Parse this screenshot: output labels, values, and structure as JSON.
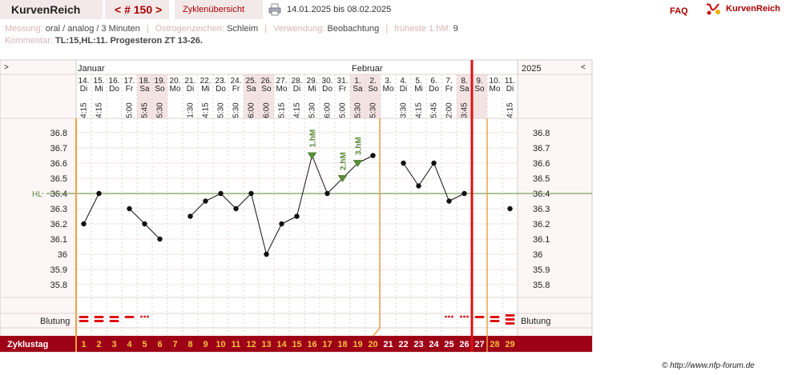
{
  "header": {
    "brand": "KurvenReich",
    "cycle_nav": "< # 150 >",
    "overview_label": "Zyklenübersicht",
    "print_icon": "printer-icon",
    "date_range": "14.01.2025 bis 08.02.2025",
    "faq": "FAQ",
    "logo_icon": "kurvenreich-logo-icon",
    "logo_text": "KurvenReich"
  },
  "meta": {
    "messung_key": "Messung:",
    "messung_val": "oral / analog / 3 Minuten",
    "oestrogen_key": "Östrogenzeichen:",
    "oestrogen_val": "Schleim",
    "verwendung_key": "Verwendung:",
    "verwendung_val": "Beobachtung",
    "fruehest_key": "früheste 1.hM:",
    "fruehest_val": "9",
    "kommentar_key": "Kommentar:",
    "kommentar_val": "TL:15,HL:11. Progesteron ZT 13-26."
  },
  "colors": {
    "accent": "#990011",
    "cycle_bar": "#9e0016",
    "orange": "#f0a040",
    "red_line": "#dd1111",
    "green": "#5a8a3a",
    "weekend_bg": "#f3e3e3",
    "panel_bg": "#fdf6f6",
    "grid": "#e0d2d2"
  },
  "chart_data": {
    "type": "line",
    "months": [
      {
        "label": "Januar",
        "start_index": 0
      },
      {
        "label": "Februar",
        "start_index": 18
      }
    ],
    "year": "2025",
    "nav_left": ">",
    "nav_right": "<",
    "x": [
      "14.",
      "15.",
      "16.",
      "17.",
      "18.",
      "19.",
      "20.",
      "21.",
      "22.",
      "23.",
      "24.",
      "25.",
      "26.",
      "27.",
      "28.",
      "29.",
      "30.",
      "31.",
      "1.",
      "2.",
      "3.",
      "4.",
      "5.",
      "6.",
      "7.",
      "8.",
      "9.",
      "10.",
      "11."
    ],
    "weekday": [
      "Di",
      "Mi",
      "Do",
      "Fr",
      "Sa",
      "So",
      "Mo",
      "Di",
      "Mi",
      "Do",
      "Fr",
      "Sa",
      "So",
      "Mo",
      "Di",
      "Mi",
      "Do",
      "Fr",
      "Sa",
      "So",
      "Mo",
      "Di",
      "Mi",
      "Do",
      "Fr",
      "Sa",
      "So",
      "Mo",
      "Di"
    ],
    "weekend": [
      false,
      false,
      false,
      false,
      true,
      true,
      false,
      false,
      false,
      false,
      false,
      true,
      true,
      false,
      false,
      false,
      false,
      false,
      true,
      true,
      false,
      false,
      false,
      false,
      false,
      true,
      true,
      false,
      false
    ],
    "times": [
      "4:15",
      "4:15",
      "",
      "5:00",
      "5:45",
      "5:30",
      "",
      "1:30",
      "4:15",
      "5:30",
      "5:30",
      "6:00",
      "6:00",
      "5:15",
      "4:15",
      "5:30",
      "6:00",
      "5:00",
      "5:30",
      "5:30",
      "",
      "3:30",
      "4:15",
      "5:45",
      "2:00",
      "3:45",
      "",
      "",
      "4:15"
    ],
    "cycle_days": [
      "1",
      "2",
      "3",
      "4",
      "5",
      "6",
      "7",
      "8",
      "9",
      "10",
      "11",
      "12",
      "13",
      "14",
      "15",
      "16",
      "17",
      "18",
      "19",
      "20",
      "21",
      "22",
      "23",
      "24",
      "25",
      "26",
      "27",
      "28",
      "29"
    ],
    "y_ticks": [
      "36.8",
      "36.7",
      "36.6",
      "36.5",
      "36.4",
      "36.3",
      "36.2",
      "36.1",
      "36",
      "35.9",
      "35.8"
    ],
    "ylim": [
      35.7,
      36.9
    ],
    "series": [
      {
        "values": [
          36.2,
          36.4,
          null,
          36.3,
          36.2,
          36.1,
          null,
          36.25,
          36.35,
          36.4,
          36.3,
          36.4,
          36.0,
          36.2,
          36.25,
          36.65,
          36.4,
          36.5,
          36.6,
          36.65,
          null,
          36.6,
          36.45,
          36.6,
          36.35,
          36.4,
          null,
          null,
          36.3
        ]
      }
    ],
    "hl_label": "HL",
    "hl_value": 36.4,
    "high_markers": [
      {
        "label": "1.hM",
        "index": 15
      },
      {
        "label": "2.hM",
        "index": 17
      },
      {
        "label": "3.hM",
        "index": 18
      }
    ],
    "bleeding_label": "Blutung",
    "bleeding": [
      "heavy",
      "heavy",
      "heavy",
      "medium",
      "spotting",
      "",
      "",
      "",
      "",
      "",
      "",
      "",
      "",
      "",
      "",
      "",
      "",
      "",
      "",
      "",
      "",
      "",
      "",
      "",
      "spotting",
      "spotting",
      "medium",
      "heavy",
      "veryheavy"
    ],
    "cycle_label": "Zyklustag",
    "ovulation_day_index": 19,
    "cycle_end_index": 25
  },
  "footer": {
    "copyright": "© http://www.nfp-forum.de"
  }
}
